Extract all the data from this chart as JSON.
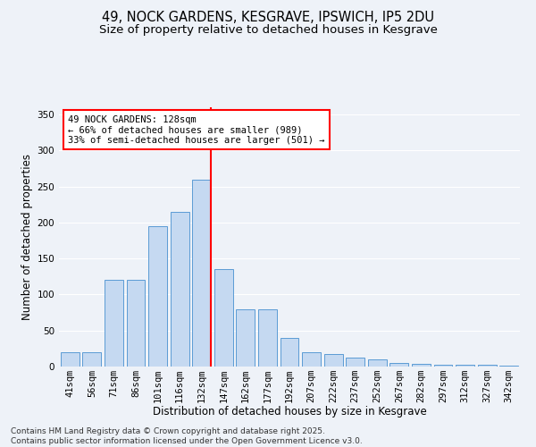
{
  "title_line1": "49, NOCK GARDENS, KESGRAVE, IPSWICH, IP5 2DU",
  "title_line2": "Size of property relative to detached houses in Kesgrave",
  "xlabel": "Distribution of detached houses by size in Kesgrave",
  "ylabel": "Number of detached properties",
  "categories": [
    "41sqm",
    "56sqm",
    "71sqm",
    "86sqm",
    "101sqm",
    "116sqm",
    "132sqm",
    "147sqm",
    "162sqm",
    "177sqm",
    "192sqm",
    "207sqm",
    "222sqm",
    "237sqm",
    "252sqm",
    "267sqm",
    "282sqm",
    "297sqm",
    "312sqm",
    "327sqm",
    "342sqm"
  ],
  "values": [
    20,
    20,
    120,
    120,
    195,
    215,
    260,
    135,
    80,
    80,
    40,
    20,
    17,
    12,
    10,
    5,
    4,
    3,
    2,
    2,
    1
  ],
  "bar_color": "#c5d9f1",
  "bar_edge_color": "#5b9bd5",
  "highlight_index": 6,
  "highlight_line_color": "#ff0000",
  "annotation_line1": "49 NOCK GARDENS: 128sqm",
  "annotation_line2": "← 66% of detached houses are smaller (989)",
  "annotation_line3": "33% of semi-detached houses are larger (501) →",
  "annotation_box_color": "#ffffff",
  "annotation_box_edge_color": "#ff0000",
  "ylim": [
    0,
    360
  ],
  "yticks": [
    0,
    50,
    100,
    150,
    200,
    250,
    300,
    350
  ],
  "background_color": "#eef2f8",
  "grid_color": "#ffffff",
  "footnote": "Contains HM Land Registry data © Crown copyright and database right 2025.\nContains public sector information licensed under the Open Government Licence v3.0.",
  "title_fontsize": 10.5,
  "subtitle_fontsize": 9.5,
  "axis_label_fontsize": 8.5,
  "tick_fontsize": 7.5,
  "annotation_fontsize": 7.5,
  "footnote_fontsize": 6.5
}
